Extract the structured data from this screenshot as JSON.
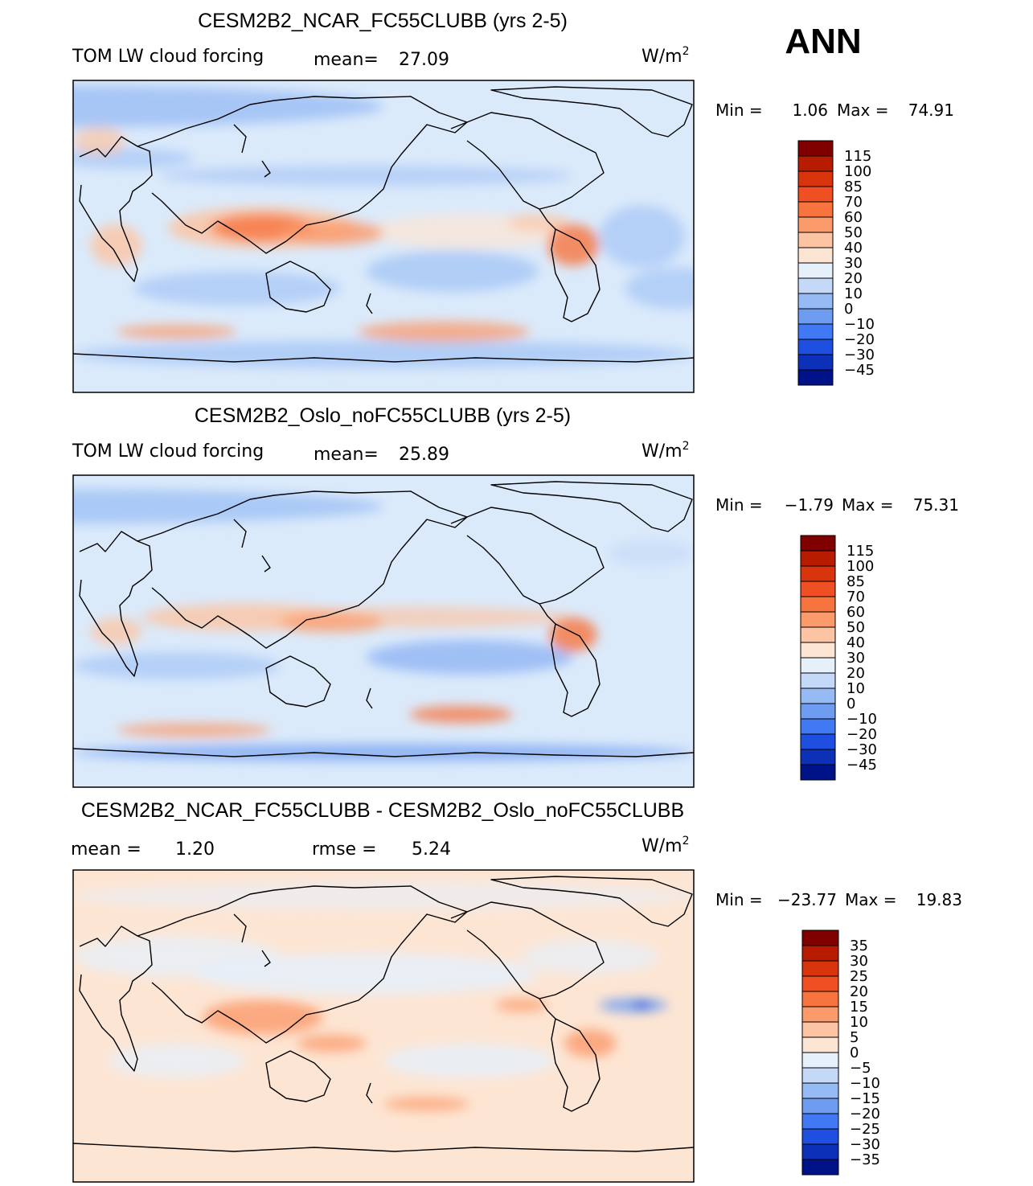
{
  "season": "ANN",
  "units_label": "W/m",
  "units_power": "2",
  "colors": {
    "ocean_light": "#dbeafb",
    "land_outline": "#000000",
    "panel_border": "#000000"
  },
  "chart_data": [
    {
      "type": "heatmap",
      "title": "CESM2B2_NCAR_FC55CLUBB (yrs 2-5)",
      "subtitle": "TOM LW cloud forcing",
      "stat1_label": "mean=",
      "stat1_value": "27.09",
      "min_label": "Min =",
      "min_value": "1.06",
      "max_label": "Max =",
      "max_value": "74.91",
      "colorbar_levels": [
        "115",
        "100",
        "85",
        "70",
        "60",
        "50",
        "40",
        "30",
        "20",
        "10",
        "0",
        "−10",
        "−20",
        "−30",
        "−45"
      ],
      "colorbar_colors": [
        "#800000",
        "#b71c00",
        "#d9350c",
        "#ef4f23",
        "#f8743e",
        "#fb9a6a",
        "#fcc4a2",
        "#fde5d3",
        "#e6f0fb",
        "#c3d9f7",
        "#95baf4",
        "#6d9cf1",
        "#4178f3",
        "#1f4fe0",
        "#0c30b8",
        "#001287"
      ],
      "field": {
        "base": "#dbeafb",
        "blobs": [
          {
            "lon": 0,
            "lat": 75,
            "rx": 180,
            "ry": 12,
            "color": "#95baf4",
            "op": 0.75
          },
          {
            "lon": 30,
            "lat": 45,
            "rx": 40,
            "ry": 6,
            "color": "#95baf4",
            "op": 0.55
          },
          {
            "lon": 170,
            "lat": 35,
            "rx": 120,
            "ry": 6,
            "color": "#95baf4",
            "op": 0.5
          },
          {
            "lon": 230,
            "lat": 3,
            "rx": 60,
            "ry": 10,
            "color": "#fde5d3",
            "op": 0.7
          },
          {
            "lon": 95,
            "lat": -30,
            "rx": 60,
            "ry": 10,
            "color": "#95baf4",
            "op": 0.55
          },
          {
            "lon": 220,
            "lat": -20,
            "rx": 50,
            "ry": 12,
            "color": "#95baf4",
            "op": 0.6
          },
          {
            "lon": 330,
            "lat": 0,
            "rx": 25,
            "ry": 18,
            "color": "#95baf4",
            "op": 0.55
          },
          {
            "lon": 350,
            "lat": -30,
            "rx": 30,
            "ry": 12,
            "color": "#95baf4",
            "op": 0.55
          },
          {
            "lon": 180,
            "lat": -68,
            "rx": 180,
            "ry": 8,
            "color": "#95baf4",
            "op": 0.6
          },
          {
            "lon": 110,
            "lat": 5,
            "rx": 55,
            "ry": 12,
            "color": "#fcc4a2",
            "op": 0.85
          },
          {
            "lon": 110,
            "lat": 5,
            "rx": 30,
            "ry": 8,
            "color": "#f8743e",
            "op": 0.8
          },
          {
            "lon": 150,
            "lat": 2,
            "rx": 30,
            "ry": 7,
            "color": "#fb9a6a",
            "op": 0.8
          },
          {
            "lon": 290,
            "lat": -5,
            "rx": 15,
            "ry": 12,
            "color": "#f8743e",
            "op": 0.8
          },
          {
            "lon": 270,
            "lat": 8,
            "rx": 18,
            "ry": 5,
            "color": "#fcc4a2",
            "op": 0.7
          },
          {
            "lon": 25,
            "lat": -5,
            "rx": 15,
            "ry": 12,
            "color": "#fcc4a2",
            "op": 0.8
          },
          {
            "lon": 215,
            "lat": -55,
            "rx": 50,
            "ry": 6,
            "color": "#fb9a6a",
            "op": 0.75
          },
          {
            "lon": 60,
            "lat": -55,
            "rx": 35,
            "ry": 4,
            "color": "#fb9a6a",
            "op": 0.75
          },
          {
            "lon": 15,
            "lat": 55,
            "rx": 15,
            "ry": 8,
            "color": "#fcc4a2",
            "op": 0.7
          }
        ]
      }
    },
    {
      "type": "heatmap",
      "title": "CESM2B2_Oslo_noFC55CLUBB (yrs 2-5)",
      "subtitle": "TOM LW cloud forcing",
      "stat1_label": "mean=",
      "stat1_value": "25.89",
      "min_label": "Min =",
      "min_value": "−1.79",
      "max_label": "Max =",
      "max_value": "75.31",
      "colorbar_levels": [
        "115",
        "100",
        "85",
        "70",
        "60",
        "50",
        "40",
        "30",
        "20",
        "10",
        "0",
        "−10",
        "−20",
        "−30",
        "−45"
      ],
      "colorbar_colors": [
        "#800000",
        "#b71c00",
        "#d9350c",
        "#ef4f23",
        "#f8743e",
        "#fb9a6a",
        "#fcc4a2",
        "#fde5d3",
        "#e6f0fb",
        "#c3d9f7",
        "#95baf4",
        "#6d9cf1",
        "#4178f3",
        "#1f4fe0",
        "#0c30b8",
        "#001287"
      ],
      "field": {
        "base": "#dbeafb",
        "blobs": [
          {
            "lon": 0,
            "lat": 72,
            "rx": 180,
            "ry": 10,
            "color": "#95baf4",
            "op": 0.7
          },
          {
            "lon": 60,
            "lat": -20,
            "rx": 60,
            "ry": 8,
            "color": "#95baf4",
            "op": 0.55
          },
          {
            "lon": 230,
            "lat": -15,
            "rx": 60,
            "ry": 10,
            "color": "#6d9cf1",
            "op": 0.55
          },
          {
            "lon": 180,
            "lat": -70,
            "rx": 180,
            "ry": 5,
            "color": "#6d9cf1",
            "op": 0.7
          },
          {
            "lon": 200,
            "lat": 8,
            "rx": 90,
            "ry": 6,
            "color": "#fcc4a2",
            "op": 0.7
          },
          {
            "lon": 100,
            "lat": 8,
            "rx": 60,
            "ry": 8,
            "color": "#fcc4a2",
            "op": 0.8
          },
          {
            "lon": 150,
            "lat": 5,
            "rx": 30,
            "ry": 6,
            "color": "#fb9a6a",
            "op": 0.7
          },
          {
            "lon": 290,
            "lat": -2,
            "rx": 14,
            "ry": 10,
            "color": "#f8743e",
            "op": 0.8
          },
          {
            "lon": 25,
            "lat": 0,
            "rx": 15,
            "ry": 8,
            "color": "#fcc4a2",
            "op": 0.75
          },
          {
            "lon": 225,
            "lat": -48,
            "rx": 30,
            "ry": 5,
            "color": "#f8743e",
            "op": 0.75
          },
          {
            "lon": 70,
            "lat": -57,
            "rx": 45,
            "ry": 4,
            "color": "#fb9a6a",
            "op": 0.75
          },
          {
            "lon": 335,
            "lat": 45,
            "rx": 25,
            "ry": 8,
            "color": "#c3d9f7",
            "op": 0.6
          }
        ]
      }
    },
    {
      "type": "heatmap",
      "title": "CESM2B2_NCAR_FC55CLUBB - CESM2B2_Oslo_noFC55CLUBB",
      "subtitle": "mean =",
      "subtitle_value": "1.20",
      "stat1_label": "rmse =",
      "stat1_value": "5.24",
      "min_label": "Min =",
      "min_value": "−23.77",
      "max_label": "Max =",
      "max_value": "19.83",
      "colorbar_levels": [
        "35",
        "30",
        "25",
        "20",
        "15",
        "10",
        "5",
        "0",
        "−5",
        "−10",
        "−15",
        "−20",
        "−25",
        "−30",
        "−35"
      ],
      "colorbar_colors": [
        "#800000",
        "#b71c00",
        "#d9350c",
        "#ef4f23",
        "#f8743e",
        "#fb9a6a",
        "#fcc4a2",
        "#fde5d3",
        "#e6f0fb",
        "#c3d9f7",
        "#95baf4",
        "#6d9cf1",
        "#4178f3",
        "#1f4fe0",
        "#0c30b8",
        "#001287"
      ],
      "field": {
        "base": "#fde5d3",
        "blobs": [
          {
            "lon": 170,
            "lat": 30,
            "rx": 100,
            "ry": 12,
            "color": "#e6f0fb",
            "op": 0.85
          },
          {
            "lon": 60,
            "lat": 40,
            "rx": 60,
            "ry": 12,
            "color": "#e6f0fb",
            "op": 0.75
          },
          {
            "lon": 230,
            "lat": -20,
            "rx": 50,
            "ry": 10,
            "color": "#e6f0fb",
            "op": 0.8
          },
          {
            "lon": 60,
            "lat": -20,
            "rx": 40,
            "ry": 10,
            "color": "#e6f0fb",
            "op": 0.75
          },
          {
            "lon": 300,
            "lat": 40,
            "rx": 40,
            "ry": 10,
            "color": "#e6f0fb",
            "op": 0.7
          },
          {
            "lon": 325,
            "lat": 12,
            "rx": 20,
            "ry": 4,
            "color": "#6d9cf1",
            "op": 0.8
          },
          {
            "lon": 330,
            "lat": 12,
            "rx": 6,
            "ry": 2,
            "color": "#1f4fe0",
            "op": 0.9
          },
          {
            "lon": 110,
            "lat": 5,
            "rx": 35,
            "ry": 10,
            "color": "#fb9a6a",
            "op": 0.8
          },
          {
            "lon": 150,
            "lat": -10,
            "rx": 20,
            "ry": 5,
            "color": "#fb9a6a",
            "op": 0.75
          },
          {
            "lon": 300,
            "lat": -10,
            "rx": 15,
            "ry": 8,
            "color": "#fb9a6a",
            "op": 0.8
          },
          {
            "lon": 260,
            "lat": 12,
            "rx": 15,
            "ry": 4,
            "color": "#fb9a6a",
            "op": 0.7
          },
          {
            "lon": 205,
            "lat": -45,
            "rx": 25,
            "ry": 4,
            "color": "#fb9a6a",
            "op": 0.7
          },
          {
            "lon": 180,
            "lat": 75,
            "rx": 180,
            "ry": 8,
            "color": "#e6f0fb",
            "op": 0.6
          }
        ]
      }
    }
  ]
}
